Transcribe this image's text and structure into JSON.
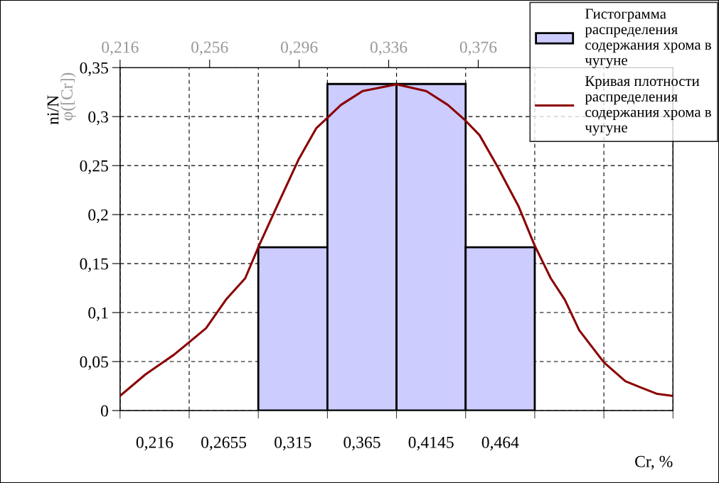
{
  "chart_data": {
    "type": "bar",
    "categories": [
      "0,216",
      "0,2655",
      "0,315",
      "0,365",
      "0,4145",
      "0,464",
      null,
      null
    ],
    "xlabel": "Cr, %",
    "ylabel": "ni/N",
    "y2label": "φ([Cr])",
    "ylim": [
      0,
      0.35
    ],
    "yticks": [
      {
        "value": 0,
        "label": "0"
      },
      {
        "value": 0.05,
        "label": "0,05"
      },
      {
        "value": 0.1,
        "label": "0,1"
      },
      {
        "value": 0.15,
        "label": "0,15"
      },
      {
        "value": 0.2,
        "label": "0,2"
      },
      {
        "value": 0.25,
        "label": "0,25"
      },
      {
        "value": 0.3,
        "label": "0,3"
      },
      {
        "value": 0.35,
        "label": "0,35"
      }
    ],
    "x2lim": [
      0.216,
      0.463
    ],
    "x2ticks": [
      {
        "value": 0.216,
        "label": "0,216"
      },
      {
        "value": 0.256,
        "label": "0,256"
      },
      {
        "value": 0.296,
        "label": "0,296"
      },
      {
        "value": 0.336,
        "label": "0,336"
      },
      {
        "value": 0.376,
        "label": "0,376"
      }
    ],
    "grid": true,
    "legend": "top right",
    "series": [
      {
        "name": "Гистограмма распределения содержания хрома в чугуне",
        "color": "#ccccff",
        "values": [
          null,
          null,
          0.1667,
          0.3333,
          0.3333,
          0.1667,
          null,
          null
        ]
      },
      {
        "name": "Кривая плотности распределения содержания хрома в чугуне",
        "type": "line",
        "axis": "x2",
        "color": "#8b0000",
        "marker": "none",
        "line_style": "solid",
        "x": [
          0.216,
          0.2274,
          0.2401,
          0.2544,
          0.2636,
          0.2719,
          0.2782,
          0.2862,
          0.2957,
          0.3036,
          0.3087,
          0.3147,
          0.3243,
          0.3395,
          0.3528,
          0.3624,
          0.3703,
          0.3766,
          0.3846,
          0.3941,
          0.4011,
          0.4084,
          0.4147,
          0.4211,
          0.4322,
          0.4417,
          0.4481,
          0.456,
          0.4627
        ],
        "values": [
          0.015,
          0.037,
          0.057,
          0.084,
          0.114,
          0.135,
          0.169,
          0.209,
          0.256,
          0.288,
          0.299,
          0.312,
          0.326,
          0.333,
          0.326,
          0.312,
          0.296,
          0.281,
          0.249,
          0.208,
          0.169,
          0.135,
          0.113,
          0.082,
          0.049,
          0.03,
          0.024,
          0.017,
          0.015
        ]
      }
    ]
  }
}
